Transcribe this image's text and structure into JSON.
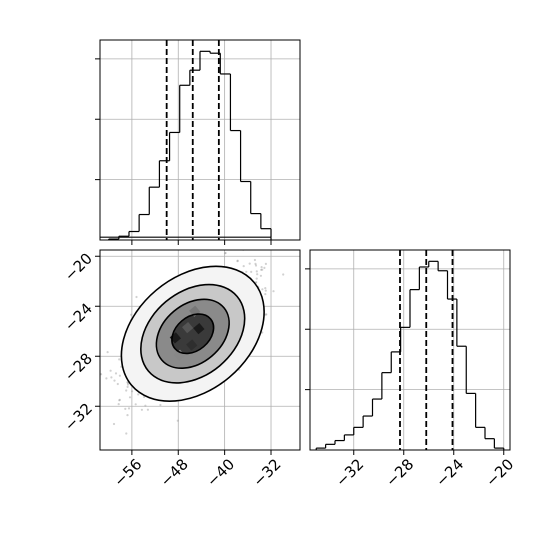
{
  "colors": {
    "line": "#000000",
    "grid": "#b0b0b0",
    "scatter": "#9a9a9a",
    "background": "#ffffff"
  },
  "chart_data": [
    {
      "type": "histogram",
      "panel": "top-left",
      "parameter_index": 0,
      "xlim": [
        -61.5,
        -27
      ],
      "ylim": [
        0,
        1.06
      ],
      "bin_edges": [
        -60,
        -58.25,
        -56.5,
        -54.75,
        -53,
        -51.25,
        -49.5,
        -47.75,
        -46,
        -44.25,
        -42.5,
        -40.75,
        -39,
        -37.25,
        -35.5,
        -33.75,
        -32
      ],
      "values": [
        0.005,
        0.02,
        0.045,
        0.135,
        0.28,
        0.42,
        0.57,
        0.82,
        0.9,
        1.0,
        0.99,
        0.88,
        0.58,
        0.31,
        0.14,
        0.06,
        0.015
      ],
      "quantile_lines": [
        -50.0,
        -45.5,
        -41.0
      ],
      "y_tick_labels_visible": false,
      "grid": true
    },
    {
      "type": "scatter-density",
      "panel": "bottom-left",
      "xlim": [
        -61.5,
        -27
      ],
      "ylim": [
        -35.5,
        -19.5
      ],
      "x_ticks": [
        -56,
        -48,
        -40,
        -32
      ],
      "x_tick_labels": [
        "−56",
        "−48",
        "−40",
        "−32"
      ],
      "y_ticks": [
        -20,
        -24,
        -28,
        -32
      ],
      "y_tick_labels": [
        "−20",
        "−24",
        "−28",
        "−32"
      ],
      "center": [
        -45.5,
        -26.2
      ],
      "contour_levels": [
        {
          "level": 0.5,
          "rx": 4.0,
          "ry": 1.35
        },
        {
          "level": 1.0,
          "rx": 7.0,
          "ry": 2.35
        },
        {
          "level": 1.5,
          "rx": 10.0,
          "ry": 3.35
        },
        {
          "level": 2.0,
          "rx": 13.8,
          "ry": 4.55
        }
      ],
      "grid": true
    },
    {
      "type": "histogram",
      "panel": "bottom-right",
      "parameter_index": 1,
      "xlim": [
        -35.5,
        -19.5
      ],
      "ylim": [
        0,
        1.06
      ],
      "x_ticks": [
        -32,
        -28,
        -24,
        -20
      ],
      "x_tick_labels": [
        "−32",
        "−28",
        "−24",
        "−20"
      ],
      "bin_edges": [
        -35,
        -34.25,
        -33.5,
        -32.75,
        -32,
        -31.25,
        -30.5,
        -29.75,
        -29,
        -28.25,
        -27.5,
        -26.75,
        -26,
        -25.25,
        -24.5,
        -23.75,
        -23,
        -22.25,
        -21.5,
        -20.75,
        -20
      ],
      "values": [
        0.01,
        0.03,
        0.05,
        0.08,
        0.12,
        0.18,
        0.27,
        0.41,
        0.52,
        0.65,
        0.85,
        0.97,
        1.0,
        0.95,
        0.8,
        0.55,
        0.3,
        0.12,
        0.06,
        0.01
      ],
      "quantile_lines": [
        -28.3,
        -26.2,
        -24.1
      ],
      "y_tick_labels_visible": false,
      "grid": true
    }
  ]
}
